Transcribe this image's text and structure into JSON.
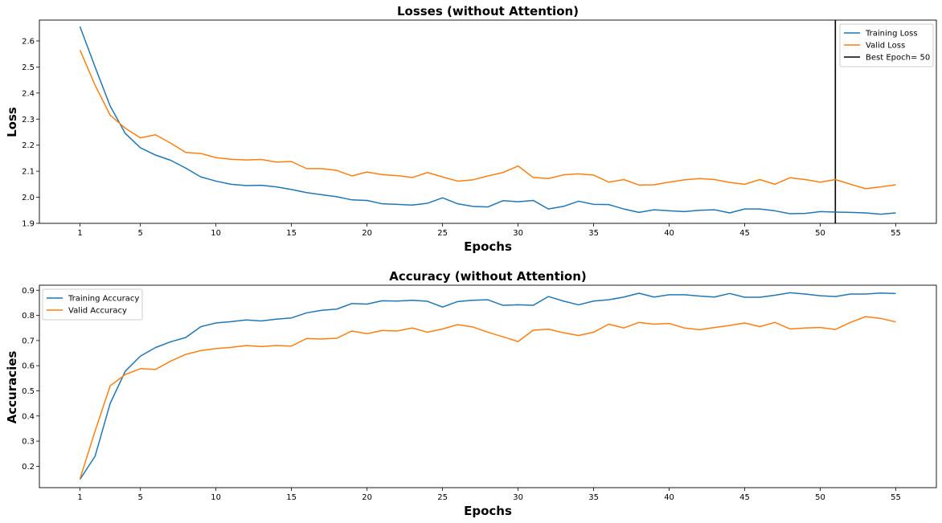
{
  "colors": {
    "training": "#1f77b4",
    "valid": "#ff7f0e",
    "best_epoch": "#000000"
  },
  "chart_data": [
    {
      "type": "line",
      "title": "Losses (without Attention)",
      "xlabel": "Epochs",
      "ylabel": "Loss",
      "xlim": [
        1,
        55
      ],
      "ylim": [
        1.9,
        2.68
      ],
      "x_ticks": [
        1,
        5,
        10,
        15,
        20,
        25,
        30,
        35,
        40,
        45,
        50,
        55
      ],
      "y_ticks": [
        1.9,
        2.0,
        2.1,
        2.2,
        2.3,
        2.4,
        2.5,
        2.6
      ],
      "y_tick_labels": [
        "1.9",
        "2.0",
        "2.1",
        "2.2",
        "2.3",
        "2.4",
        "2.5",
        "2.6"
      ],
      "grid": false,
      "legend": "top-right",
      "vline": {
        "x": 51,
        "name": "Best Epoch= 50"
      },
      "series": [
        {
          "name": "Training Loss",
          "color": "#1f77b4",
          "values": [
            2.655,
            2.5,
            2.35,
            2.245,
            2.19,
            2.162,
            2.142,
            2.112,
            2.078,
            2.062,
            2.05,
            2.045,
            2.046,
            2.04,
            2.03,
            2.018,
            2.01,
            2.002,
            1.99,
            1.988,
            1.975,
            1.973,
            1.97,
            1.977,
            1.998,
            1.975,
            1.965,
            1.963,
            1.987,
            1.983,
            1.988,
            1.955,
            1.965,
            1.985,
            1.973,
            1.972,
            1.955,
            1.942,
            1.952,
            1.948,
            1.945,
            1.95,
            1.952,
            1.94,
            1.955,
            1.955,
            1.948,
            1.937,
            1.938,
            1.945,
            1.943,
            1.942,
            1.94,
            1.935,
            1.94
          ]
        },
        {
          "name": "Valid Loss",
          "color": "#ff7f0e",
          "values": [
            2.565,
            2.43,
            2.315,
            2.265,
            2.228,
            2.24,
            2.208,
            2.172,
            2.168,
            2.152,
            2.146,
            2.143,
            2.145,
            2.135,
            2.137,
            2.11,
            2.11,
            2.103,
            2.082,
            2.097,
            2.087,
            2.083,
            2.076,
            2.095,
            2.078,
            2.062,
            2.067,
            2.082,
            2.095,
            2.12,
            2.076,
            2.072,
            2.086,
            2.09,
            2.085,
            2.058,
            2.068,
            2.047,
            2.048,
            2.058,
            2.067,
            2.072,
            2.068,
            2.057,
            2.05,
            2.068,
            2.05,
            2.075,
            2.068,
            2.058,
            2.068,
            2.05,
            2.033,
            2.04,
            2.048
          ]
        }
      ]
    },
    {
      "type": "line",
      "title": "Accuracy (without Attention)",
      "xlabel": "Epochs",
      "ylabel": "Accuracies",
      "xlim": [
        1,
        55
      ],
      "ylim": [
        0.115,
        0.92
      ],
      "x_ticks": [
        1,
        5,
        10,
        15,
        20,
        25,
        30,
        35,
        40,
        45,
        50,
        55
      ],
      "y_ticks": [
        0.2,
        0.3,
        0.4,
        0.5,
        0.6,
        0.7,
        0.8,
        0.9
      ],
      "y_tick_labels": [
        "0.2",
        "0.3",
        "0.4",
        "0.5",
        "0.6",
        "0.7",
        "0.8",
        "0.9"
      ],
      "grid": false,
      "legend": "top-left",
      "series": [
        {
          "name": "Training Accuracy",
          "color": "#1f77b4",
          "values": [
            0.148,
            0.24,
            0.45,
            0.578,
            0.638,
            0.672,
            0.695,
            0.712,
            0.755,
            0.77,
            0.775,
            0.782,
            0.778,
            0.785,
            0.79,
            0.81,
            0.82,
            0.825,
            0.847,
            0.845,
            0.858,
            0.857,
            0.86,
            0.856,
            0.833,
            0.855,
            0.86,
            0.862,
            0.84,
            0.842,
            0.84,
            0.875,
            0.857,
            0.842,
            0.857,
            0.862,
            0.873,
            0.888,
            0.873,
            0.882,
            0.882,
            0.877,
            0.873,
            0.887,
            0.872,
            0.872,
            0.88,
            0.89,
            0.885,
            0.878,
            0.875,
            0.885,
            0.885,
            0.889,
            0.887
          ]
        },
        {
          "name": "Valid Accuracy",
          "color": "#ff7f0e",
          "values": [
            0.15,
            0.34,
            0.52,
            0.565,
            0.588,
            0.585,
            0.618,
            0.645,
            0.66,
            0.668,
            0.673,
            0.68,
            0.676,
            0.68,
            0.678,
            0.708,
            0.706,
            0.709,
            0.738,
            0.727,
            0.74,
            0.738,
            0.75,
            0.733,
            0.746,
            0.763,
            0.754,
            0.733,
            0.715,
            0.696,
            0.741,
            0.745,
            0.731,
            0.72,
            0.733,
            0.765,
            0.75,
            0.772,
            0.765,
            0.768,
            0.75,
            0.743,
            0.752,
            0.76,
            0.77,
            0.755,
            0.772,
            0.746,
            0.75,
            0.752,
            0.744,
            0.772,
            0.795,
            0.788,
            0.774
          ]
        }
      ]
    }
  ]
}
